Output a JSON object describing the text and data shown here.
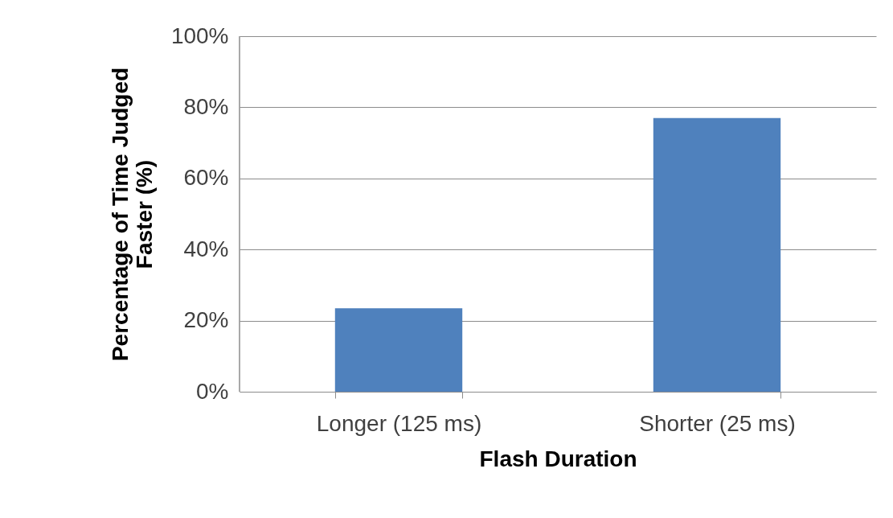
{
  "chart_data": {
    "type": "bar",
    "xlabel": "Flash Duration",
    "ylabel": "Percentage of Time Judged Faster (%)",
    "categories": [
      "Longer (125 ms)",
      "Shorter (25 ms)"
    ],
    "values": [
      23.5,
      77
    ],
    "color": "#4f81bd",
    "ylim": [
      0,
      100
    ],
    "yticks": [
      {
        "value": 0,
        "label": "0%"
      },
      {
        "value": 20,
        "label": "20%"
      },
      {
        "value": 40,
        "label": "40%"
      },
      {
        "value": 60,
        "label": "60%"
      },
      {
        "value": 80,
        "label": "80%"
      },
      {
        "value": 100,
        "label": "100%"
      }
    ],
    "grid": "y"
  }
}
